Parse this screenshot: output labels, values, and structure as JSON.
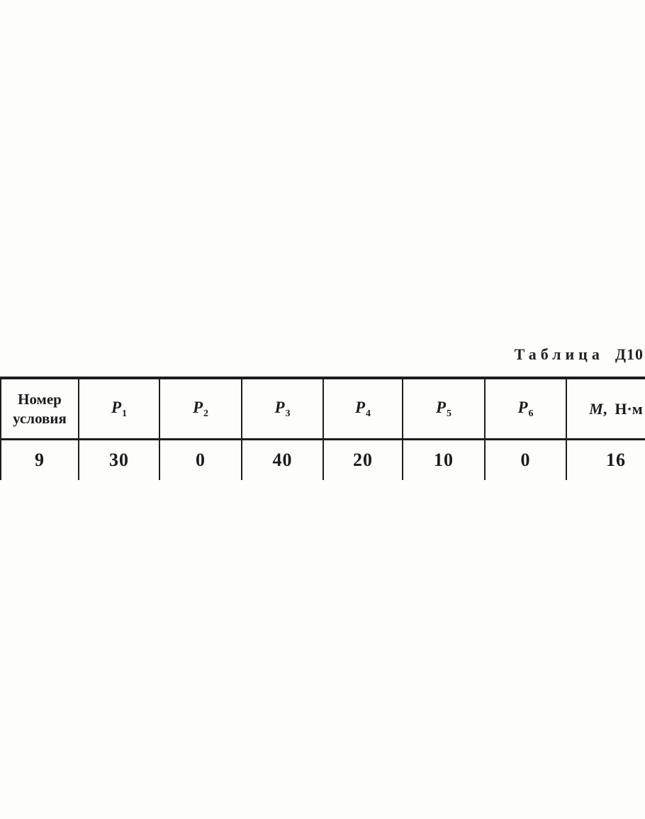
{
  "caption": {
    "word": "Таблица",
    "ident": "Д10"
  },
  "table": {
    "header": {
      "number": {
        "line1": "Номер",
        "line2": "условия"
      },
      "p1": {
        "base": "P",
        "sub": "1"
      },
      "p2": {
        "base": "P",
        "sub": "2"
      },
      "p3": {
        "base": "P",
        "sub": "3"
      },
      "p4": {
        "base": "P",
        "sub": "4"
      },
      "p5": {
        "base": "P",
        "sub": "5"
      },
      "p6": {
        "base": "P",
        "sub": "6"
      },
      "moment": {
        "base": "M",
        "rest": ",  Н·м"
      }
    },
    "row": {
      "number": "9",
      "p1": "30",
      "p2": "0",
      "p3": "40",
      "p4": "20",
      "p5": "10",
      "p6": "0",
      "moment": "16"
    }
  }
}
